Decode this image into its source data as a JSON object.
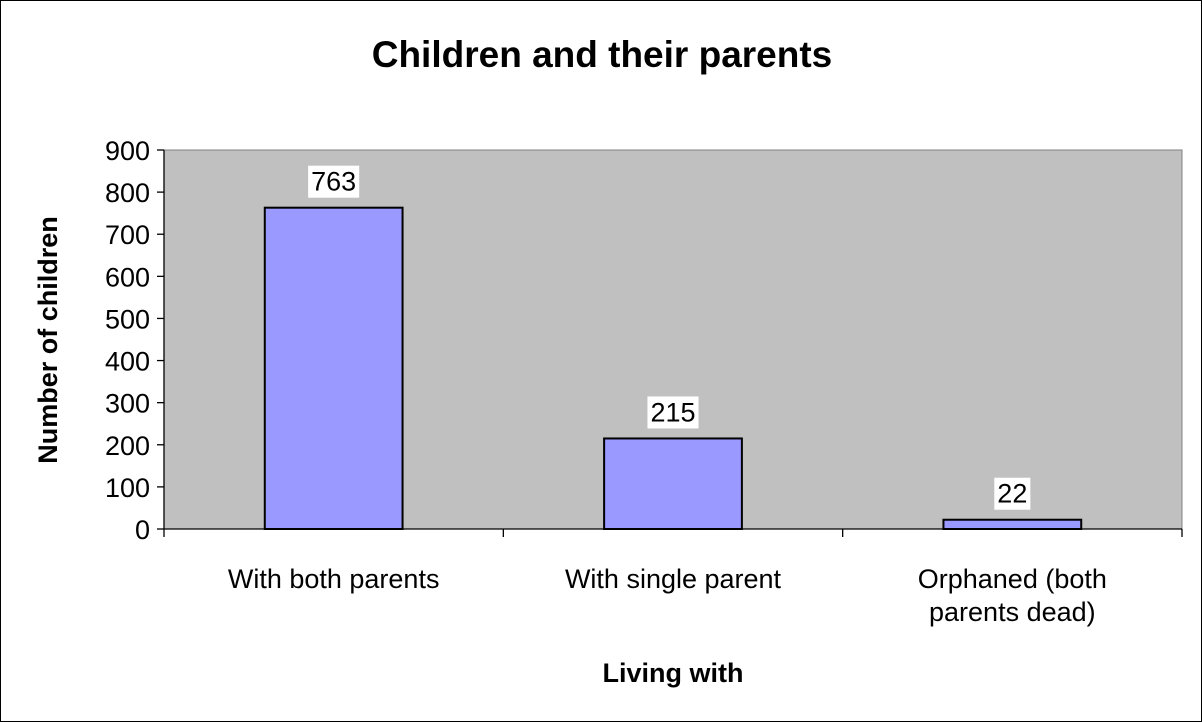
{
  "chart_data": {
    "type": "bar",
    "title": "Children and their parents",
    "xlabel": "Living with",
    "ylabel": "Number of children",
    "categories": [
      [
        "With both parents"
      ],
      [
        "With single parent"
      ],
      [
        "Orphaned (both",
        "parents dead)"
      ]
    ],
    "values": [
      763,
      215,
      22
    ],
    "ylim": [
      0,
      900
    ],
    "yticks": [
      0,
      100,
      200,
      300,
      400,
      500,
      600,
      700,
      800,
      900
    ],
    "grid": false,
    "legend": "none",
    "colors": {
      "plot_background": "#c0c0c0",
      "bar_fill": "#9999ff",
      "bar_stroke": "#000000"
    }
  }
}
